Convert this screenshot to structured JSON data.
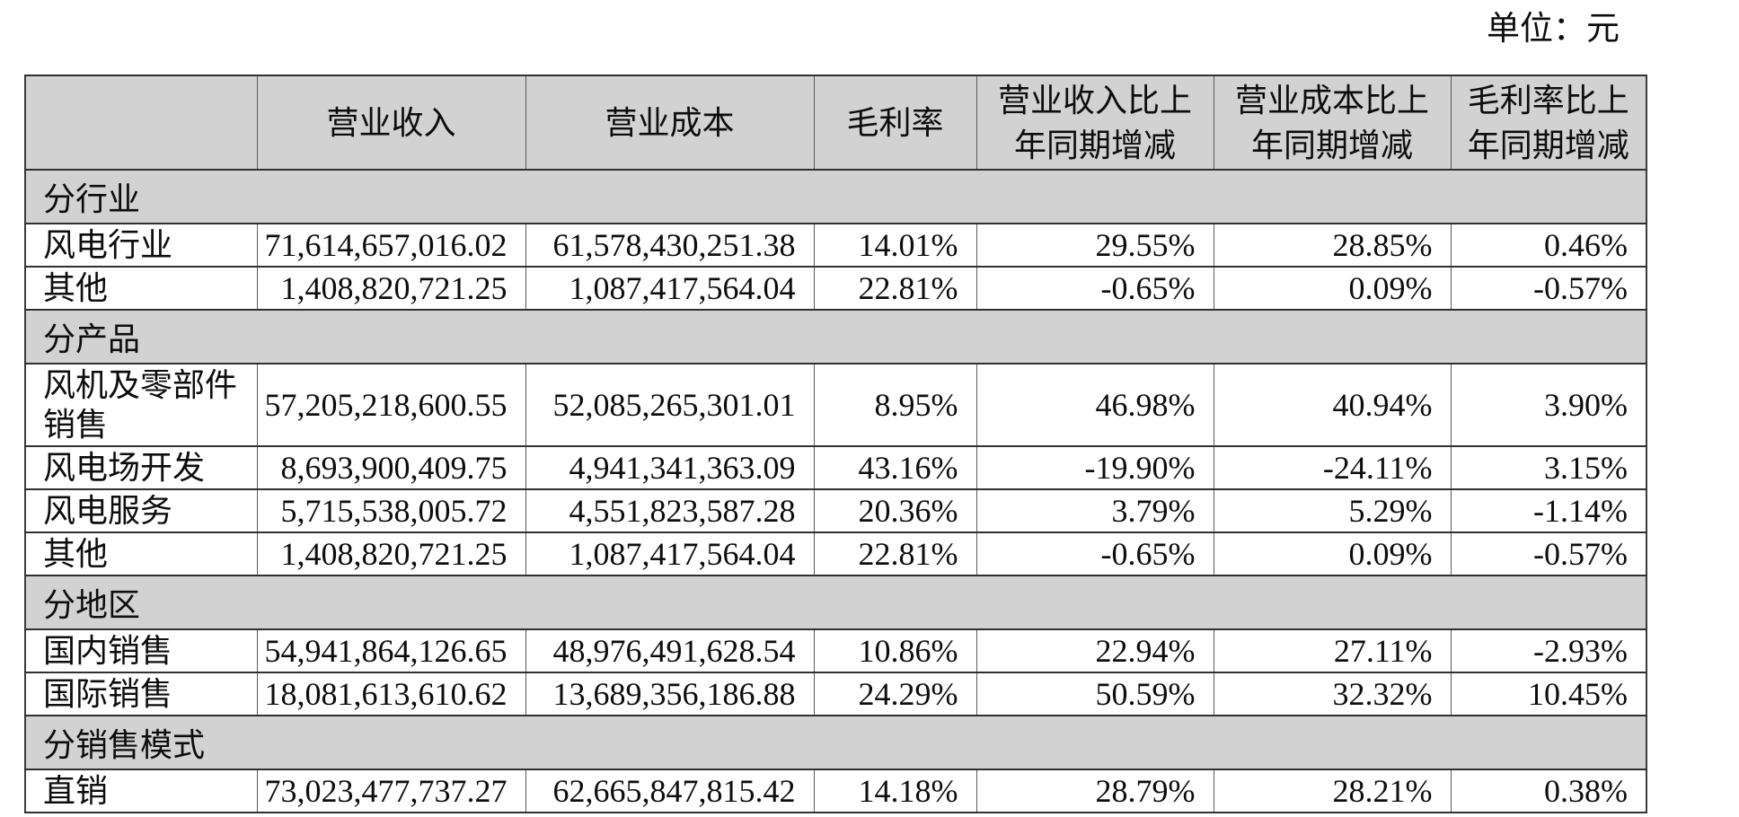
{
  "unit_label": "单位：元",
  "table": {
    "headers": [
      "",
      "营业收入",
      "营业成本",
      "毛利率",
      "营业收入比上年同期增减",
      "营业成本比上年同期增减",
      "毛利率比上年同期增减"
    ],
    "sections": [
      {
        "title": "分行业",
        "rows": [
          {
            "cells": [
              "风电行业",
              "71,614,657,016.02",
              "61,578,430,251.38",
              "14.01%",
              "29.55%",
              "28.85%",
              "0.46%"
            ]
          },
          {
            "cells": [
              "其他",
              "1,408,820,721.25",
              "1,087,417,564.04",
              "22.81%",
              "-0.65%",
              "0.09%",
              "-0.57%"
            ]
          }
        ]
      },
      {
        "title": "分产品",
        "rows": [
          {
            "cells": [
              "风机及零部件销售",
              "57,205,218,600.55",
              "52,085,265,301.01",
              "8.95%",
              "46.98%",
              "40.94%",
              "3.90%"
            ]
          },
          {
            "cells": [
              "风电场开发",
              "8,693,900,409.75",
              "4,941,341,363.09",
              "43.16%",
              "-19.90%",
              "-24.11%",
              "3.15%"
            ]
          },
          {
            "cells": [
              "风电服务",
              "5,715,538,005.72",
              "4,551,823,587.28",
              "20.36%",
              "3.79%",
              "5.29%",
              "-1.14%"
            ]
          },
          {
            "cells": [
              "其他",
              "1,408,820,721.25",
              "1,087,417,564.04",
              "22.81%",
              "-0.65%",
              "0.09%",
              "-0.57%"
            ]
          }
        ]
      },
      {
        "title": "分地区",
        "rows": [
          {
            "cells": [
              "国内销售",
              "54,941,864,126.65",
              "48,976,491,628.54",
              "10.86%",
              "22.94%",
              "27.11%",
              "-2.93%"
            ]
          },
          {
            "cells": [
              "国际销售",
              "18,081,613,610.62",
              "13,689,356,186.88",
              "24.29%",
              "50.59%",
              "32.32%",
              "10.45%"
            ]
          }
        ]
      },
      {
        "title": "分销售模式",
        "rows": [
          {
            "cells": [
              "直销",
              "73,023,477,737.27",
              "62,665,847,815.42",
              "14.18%",
              "28.79%",
              "28.21%",
              "0.38%"
            ]
          }
        ]
      }
    ]
  }
}
